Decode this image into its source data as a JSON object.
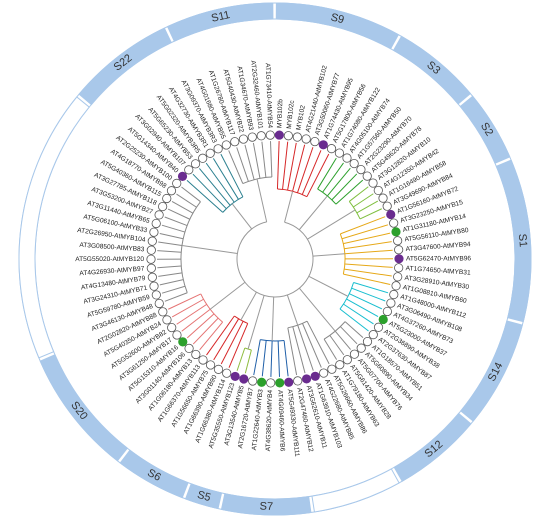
{
  "groups": [
    {
      "label": "S9",
      "color": "#d62728",
      "leaves": [
        {
          "label": "MYB102b",
          "dot": "#6a2c8f"
        },
        {
          "label": "MYB102c"
        },
        {
          "label": "MYB102"
        },
        {
          "label": "AT4G21440-AtMYB102"
        },
        {
          "label": "AT3G50060-AtMYB77"
        },
        {
          "label": "AT1G74430-AtMYB95",
          "dot": "#6a2c8f"
        },
        {
          "label": "AT5G17800-AtMYB56"
        }
      ]
    },
    {
      "label": "S3",
      "color": "#2ca02c",
      "leaves": [
        {
          "label": "AT1G74080-AtMYB122"
        },
        {
          "label": "AT4G05100-AtMYB74"
        },
        {
          "label": "AT1G57560-AtMYB50"
        },
        {
          "label": "AT2G23290-AtMYB70"
        },
        {
          "label": "AT5G49620-AtMYB78"
        }
      ]
    },
    {
      "label": "S2",
      "color": "#7fbf3f",
      "leaves": [
        {
          "label": "AT3G12820-AtMYB10"
        },
        {
          "label": "AT4G12350-AtMYB42"
        },
        {
          "label": "AT1G16490-AtMYB58"
        },
        {
          "label": "AT3G49690-AtMYB84"
        }
      ]
    },
    {
      "label": "S1",
      "color": "#e6a817",
      "leaves": [
        {
          "label": "AT1G56160-AtMYB72",
          "dot": "#6a2c8f"
        },
        {
          "label": "AT3G23250-AtMYB15"
        },
        {
          "label": "AT1G31180-AtMYB14",
          "dot": "#2ca02c"
        },
        {
          "label": "AT5G56110-AtMYB80"
        },
        {
          "label": "AT3G47600-AtMYB94"
        },
        {
          "label": "AT5G62470-AtMYB96",
          "dot": "#6a2c8f"
        },
        {
          "label": "AT1G74650-AtMYB31"
        },
        {
          "label": "AT3G28910-AtMYB30"
        },
        {
          "label": "AT1G08810-AtMYB60"
        }
      ]
    },
    {
      "label": "S14",
      "color": "#17becf",
      "leaves": [
        {
          "label": "AT1G48000-AtMYB112"
        },
        {
          "label": "AT3G06490-AtMYB108"
        },
        {
          "label": "AT4G37260-AtMYB73"
        },
        {
          "label": "AT5G23000-AtMYB37",
          "dot": "#2ca02c"
        },
        {
          "label": "AT2G36890-AtMYB38"
        },
        {
          "label": "AT2G37630-AtMYB87"
        }
      ]
    },
    {
      "label": "S12",
      "color": "#888888",
      "leaves": [
        {
          "label": "AT1G18570-AtMYB51"
        },
        {
          "label": "AT5G60890-AtMYB34"
        },
        {
          "label": "AT5G07700-AtMYB76"
        },
        {
          "label": "AT5G61420-AtMYB28"
        },
        {
          "label": "AT1G79180-AtMYB63"
        }
      ]
    },
    {
      "label": null,
      "color": "#888888",
      "leaves": [
        {
          "label": "AT5G26660-AtMYB86"
        },
        {
          "label": "AT4G22680-AtMYB85"
        },
        {
          "label": "AT1G63910-AtMYB103",
          "dot": "#6a2c8f"
        },
        {
          "label": "AT3G62610-AtMYB11",
          "dot": "#6a2c8f"
        },
        {
          "label": "AT2G47460-AtMYB12"
        }
      ]
    },
    {
      "label": "S7",
      "color": "#1f5fa8",
      "leaves": [
        {
          "label": "AT5G49330-AtMYB111",
          "dot": "#6a2c8f"
        },
        {
          "label": "AT4G09460-AtMYB6",
          "dot": "#2ca02c"
        },
        {
          "label": "AT4G38620-AtMYB4"
        },
        {
          "label": "AT1G22640-AtMYB3",
          "dot": "#2ca02c"
        },
        {
          "label": "AT2G16720-AtMYB7"
        }
      ]
    },
    {
      "label": "S5",
      "color": "#8fbc3f",
      "leaves": [
        {
          "label": "AT3G13540-AtMYB5",
          "dot": "#6a2c8f"
        },
        {
          "label": "AT5G35550-AtMYB123",
          "dot": "#6a2c8f"
        }
      ]
    },
    {
      "label": "S6",
      "color": "#d62728",
      "leaves": [
        {
          "label": "AT1G66380-AtMYB114"
        },
        {
          "label": "AT1G66390-AtMYB90"
        },
        {
          "label": "AT1G56650-AtMYB75"
        },
        {
          "label": "AT1G66370-AtMYB113"
        }
      ]
    },
    {
      "label": "S20",
      "color": "#e57373",
      "leaves": [
        {
          "label": "AT1G06180-AtMYB13"
        },
        {
          "label": "AT3G01140-AtMYB106"
        },
        {
          "label": "AT5G15310-AtMYB16",
          "dot": "#2ca02c"
        },
        {
          "label": "AT3G61250-AtMYB17"
        },
        {
          "label": "AT5G52600-AtMYB82"
        },
        {
          "label": "AT5G40350-AtMYB24"
        },
        {
          "label": "AT2G02820-AtMYB88"
        }
      ]
    },
    {
      "label": null,
      "color": "#888888",
      "leaves": [
        {
          "label": "AT3G46130-AtMYB48"
        },
        {
          "label": "AT5G59780-AtMYB59"
        },
        {
          "label": "AT3G24310-AtMYB71"
        },
        {
          "label": "AT4G13480-AtMYB79"
        },
        {
          "label": "AT4G26930-AtMYB97"
        },
        {
          "label": "AT5G55020-AtMYB120"
        },
        {
          "label": "AT3G08500-AtMYB83"
        },
        {
          "label": "AT2G26950-AtMYB104"
        },
        {
          "label": "AT5G06100-AtMYB33"
        },
        {
          "label": "AT3G11440-AtMYB65"
        },
        {
          "label": "AT3G53200-AtMYB27"
        },
        {
          "label": "AT3G27785-AtMYB118"
        },
        {
          "label": "AT5G40360-AtMYB115"
        },
        {
          "label": "AT4G18770-AtMYB98"
        },
        {
          "label": "AT2G25230-AtMYB100"
        }
      ]
    },
    {
      "label": "S22",
      "color": "#2a7f8f",
      "leaves": [
        {
          "label": "AT5G14340-AtMYB40",
          "dot": "#6a2c8f"
        },
        {
          "label": "AT3G02940-AtMYB107"
        },
        {
          "label": "AT5G65230-AtMYB53"
        },
        {
          "label": "AT5G02320-AtMYB3R5"
        },
        {
          "label": "AT4G32730-AtMYB3R1"
        },
        {
          "label": "AT3G09370-AtMYB3R3"
        }
      ]
    },
    {
      "label": "S11",
      "color": "#888888",
      "leaves": [
        {
          "label": "AT4G01680-AtMYB55"
        },
        {
          "label": "AT1G26780-AtMYB117"
        },
        {
          "label": "AT5G40430-AtMYB22"
        },
        {
          "label": "AT1G34670-AtMYB93"
        },
        {
          "label": "AT2G32460-AtMYB101"
        },
        {
          "label": "AT1G73410-AtMYB54"
        }
      ]
    }
  ]
}
